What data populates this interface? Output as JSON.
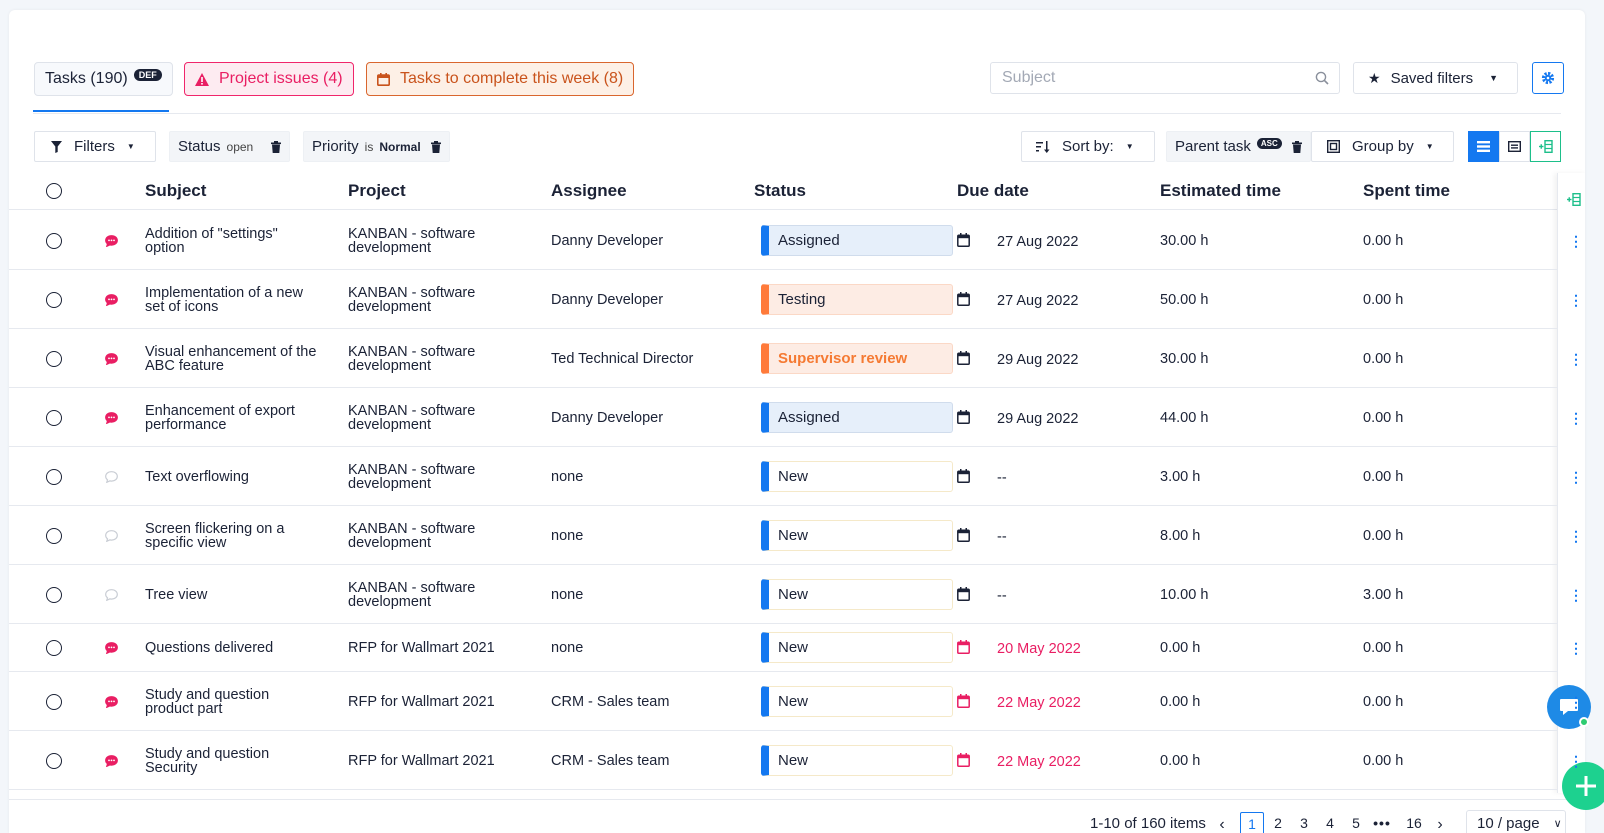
{
  "tabs": {
    "tasks": {
      "label": "Tasks (190)",
      "badge": "DEF"
    },
    "issues": {
      "label": "Project issues (4)"
    },
    "week": {
      "label": "Tasks to complete this week (8)"
    }
  },
  "search": {
    "placeholder": "Subject"
  },
  "saved_filters": {
    "label": "Saved filters"
  },
  "filters": {
    "filters_label": "Filters",
    "status": {
      "name": "Status",
      "value": "open"
    },
    "priority": {
      "name": "Priority",
      "op": "is",
      "value": "Normal"
    },
    "sort_label": "Sort by:",
    "parent": {
      "name": "Parent task",
      "badge": "ASC"
    },
    "group_label": "Group by"
  },
  "columns": {
    "subject": "Subject",
    "project": "Project",
    "assignee": "Assignee",
    "status": "Status",
    "due": "Due date",
    "estimated": "Estimated time",
    "spent": "Spent time"
  },
  "rows": [
    {
      "subject_1": "Addition of \"settings\"",
      "subject_2": "option",
      "project_1": "KANBAN - software",
      "project_2": "development",
      "assignee": "Danny Developer",
      "status": "Assigned",
      "status_kind": "assigned",
      "due": "27 Aug 2022",
      "overdue": false,
      "estimated": "30.00 h",
      "spent": "0.00 h",
      "priority_icon": "urgent"
    },
    {
      "subject_1": "Implementation of a new",
      "subject_2": "set of icons",
      "project_1": "KANBAN - software",
      "project_2": "development",
      "assignee": "Danny Developer",
      "status": "Testing",
      "status_kind": "testing",
      "due": "27 Aug 2022",
      "overdue": false,
      "estimated": "50.00 h",
      "spent": "0.00 h",
      "priority_icon": "urgent"
    },
    {
      "subject_1": "Visual enhancement of the",
      "subject_2": "ABC feature",
      "project_1": "KANBAN - software",
      "project_2": "development",
      "assignee": "Ted Technical Director",
      "status": "Supervisor review",
      "status_kind": "review",
      "due": "29 Aug 2022",
      "overdue": false,
      "estimated": "30.00 h",
      "spent": "0.00 h",
      "priority_icon": "urgent"
    },
    {
      "subject_1": "Enhancement of export",
      "subject_2": "performance",
      "project_1": "KANBAN - software",
      "project_2": "development",
      "assignee": "Danny Developer",
      "status": "Assigned",
      "status_kind": "assigned",
      "due": "29 Aug 2022",
      "overdue": false,
      "estimated": "44.00 h",
      "spent": "0.00 h",
      "priority_icon": "urgent"
    },
    {
      "subject_1": "Text overflowing",
      "subject_2": "",
      "project_1": "KANBAN - software",
      "project_2": "development",
      "assignee": "none",
      "status": "New",
      "status_kind": "new",
      "due": "--",
      "overdue": false,
      "estimated": "3.00 h",
      "spent": "0.00 h",
      "priority_icon": "empty"
    },
    {
      "subject_1": "Screen flickering on a",
      "subject_2": "specific view",
      "project_1": "KANBAN - software",
      "project_2": "development",
      "assignee": "none",
      "status": "New",
      "status_kind": "new",
      "due": "--",
      "overdue": false,
      "estimated": "8.00 h",
      "spent": "0.00 h",
      "priority_icon": "empty"
    },
    {
      "subject_1": "Tree view",
      "subject_2": "",
      "project_1": "KANBAN - software",
      "project_2": "development",
      "assignee": "none",
      "status": "New",
      "status_kind": "new",
      "due": "--",
      "overdue": false,
      "estimated": "10.00 h",
      "spent": "3.00 h",
      "priority_icon": "empty"
    },
    {
      "subject_1": "Questions delivered",
      "subject_2": "",
      "project_1": "RFP for Wallmart 2021",
      "project_2": "",
      "assignee": "none",
      "status": "New",
      "status_kind": "new",
      "due": "20 May 2022",
      "overdue": true,
      "estimated": "0.00 h",
      "spent": "0.00 h",
      "priority_icon": "urgent"
    },
    {
      "subject_1": "Study and question",
      "subject_2": "product part",
      "project_1": "RFP for Wallmart 2021",
      "project_2": "",
      "assignee": "CRM - Sales team",
      "status": "New",
      "status_kind": "new",
      "due": "22 May 2022",
      "overdue": true,
      "estimated": "0.00 h",
      "spent": "0.00 h",
      "priority_icon": "urgent"
    },
    {
      "subject_1": "Study and question",
      "subject_2": "Security",
      "project_1": "RFP for Wallmart 2021",
      "project_2": "",
      "assignee": "CRM - Sales team",
      "status": "New",
      "status_kind": "new",
      "due": "22 May 2022",
      "overdue": true,
      "estimated": "0.00 h",
      "spent": "0.00 h",
      "priority_icon": "urgent"
    }
  ],
  "pagination": {
    "summary": "1-10 of 160 items",
    "pages": [
      "1",
      "2",
      "3",
      "4",
      "5"
    ],
    "ellipsis": "•••",
    "last": "16",
    "per_page": "10 / page"
  },
  "colors": {
    "accent": "#1478f0",
    "danger": "#e91e63",
    "warning": "#ff7a3a",
    "success": "#1dd18f"
  }
}
